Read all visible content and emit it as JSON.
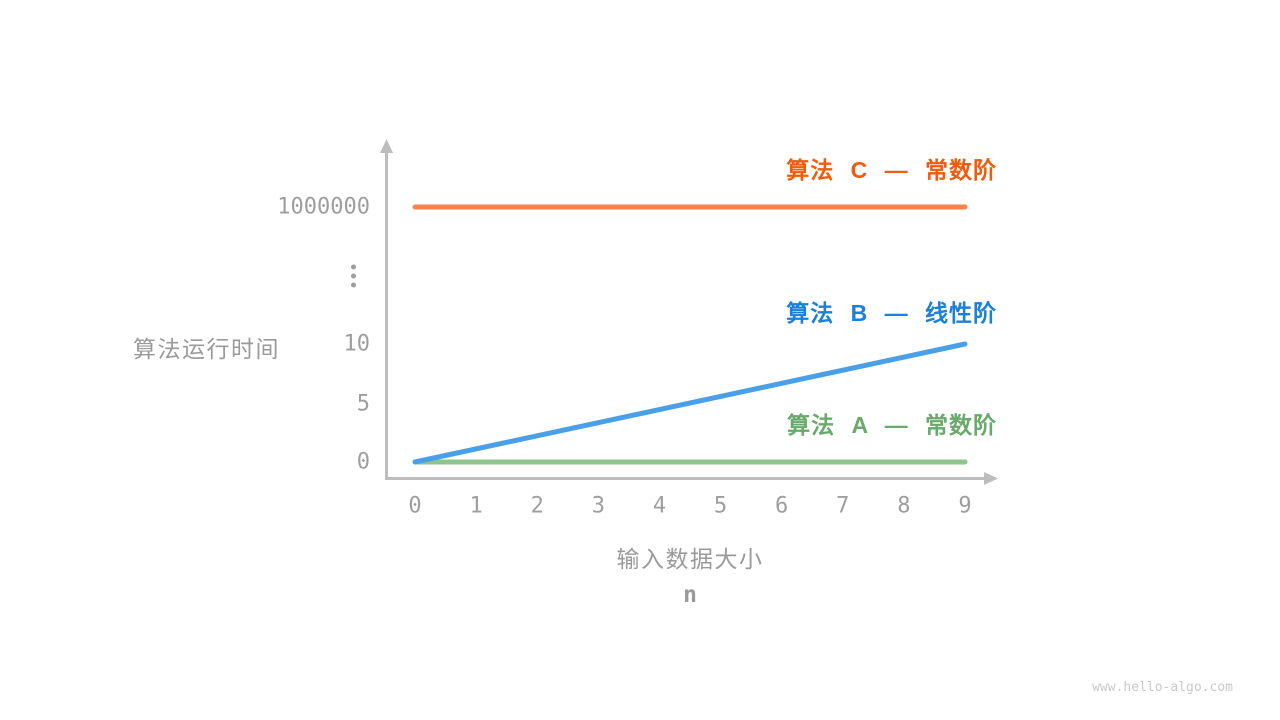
{
  "chart_data": {
    "type": "line",
    "ylabel": "算法运行时间",
    "xlabel": "输入数据大小",
    "xlabel_symbol": "n",
    "x_ticks": [
      "0",
      "1",
      "2",
      "3",
      "4",
      "5",
      "6",
      "7",
      "8",
      "9"
    ],
    "y_ticks": [
      "0",
      "5",
      "10",
      "⋮",
      "1000000"
    ],
    "x_range": [
      0,
      9
    ],
    "y_axis_break": true,
    "legend_position": "inline-right",
    "axis_color": "#bdbdbd",
    "text_color": "#9e9e9e",
    "series": [
      {
        "id": "C",
        "label": "算法 C — 常数阶",
        "complexity": "constant",
        "label_color": "#f25b0c",
        "line_color": "#f5834f",
        "points": [
          [
            0,
            1000000
          ],
          [
            9,
            1000000
          ]
        ]
      },
      {
        "id": "B",
        "label": "算法 B — 线性阶",
        "complexity": "linear",
        "label_color": "#1a80d9",
        "line_color": "#4aa0e8",
        "points": [
          [
            0,
            0
          ],
          [
            9,
            10
          ]
        ]
      },
      {
        "id": "A",
        "label": "算法 A — 常数阶",
        "complexity": "constant",
        "label_color": "#69a96b",
        "line_color": "#8dc58c",
        "points": [
          [
            0,
            0
          ],
          [
            9,
            0
          ]
        ]
      }
    ]
  },
  "page": {
    "watermark": "www.hello-algo.com"
  }
}
